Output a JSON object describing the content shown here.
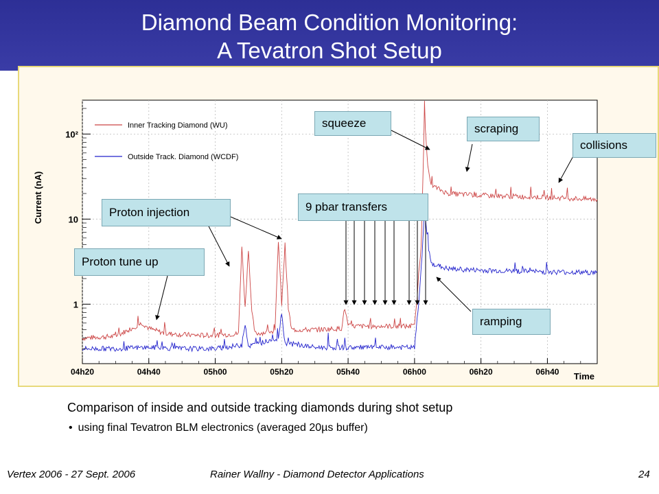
{
  "header": {
    "title_line1": "Diamond Beam Condition Monitoring:",
    "title_line2": "A Tevatron Shot Setup"
  },
  "chart_data": {
    "type": "line",
    "title": "",
    "xlabel": "Time",
    "ylabel": "Current (nA)",
    "yscale": "log",
    "x_ticks": [
      "04h20",
      "04h40",
      "05h00",
      "05h20",
      "05h40",
      "06h00",
      "06h20",
      "06h40"
    ],
    "y_ticks": [
      "1",
      "10",
      "10²"
    ],
    "xlim": [
      "04h20",
      "06h55"
    ],
    "ylim": [
      0.2,
      250
    ],
    "legend_position": "top-left",
    "series": [
      {
        "name": "Inner Tracking Diamond (WU)",
        "color": "#cc4444",
        "points": [
          [
            "04h20",
            0.4
          ],
          [
            "04h30",
            0.42
          ],
          [
            "04h38",
            0.6
          ],
          [
            "04h40",
            0.52
          ],
          [
            "04h45",
            0.45
          ],
          [
            "04h55",
            0.43
          ],
          [
            "05h00",
            0.43
          ],
          [
            "05h07",
            0.45
          ],
          [
            "05h08",
            4.8
          ],
          [
            "05h09",
            0.9
          ],
          [
            "05h10",
            4.5
          ],
          [
            "05h11",
            0.8
          ],
          [
            "05h12",
            0.45
          ],
          [
            "05h18",
            0.48
          ],
          [
            "05h19",
            5.5
          ],
          [
            "05h20",
            1.0
          ],
          [
            "05h21",
            5.0
          ],
          [
            "05h22",
            0.9
          ],
          [
            "05h23",
            0.5
          ],
          [
            "05h30",
            0.5
          ],
          [
            "05h38",
            0.52
          ],
          [
            "05h39",
            0.9
          ],
          [
            "05h40",
            0.55
          ],
          [
            "05h50",
            0.55
          ],
          [
            "06h00",
            0.55
          ],
          [
            "06h01",
            1.5
          ],
          [
            "06h02",
            5.0
          ],
          [
            "06h03",
            180
          ],
          [
            "06h04",
            40
          ],
          [
            "06h05",
            25
          ],
          [
            "06h10",
            20
          ],
          [
            "06h20",
            19
          ],
          [
            "06h30",
            18.5
          ],
          [
            "06h40",
            18
          ],
          [
            "06h55",
            17
          ]
        ]
      },
      {
        "name": "Outside Track. Diamond (WCDF)",
        "color": "#2222cc",
        "points": [
          [
            "04h20",
            0.3
          ],
          [
            "04h30",
            0.3
          ],
          [
            "04h40",
            0.31
          ],
          [
            "04h50",
            0.3
          ],
          [
            "05h00",
            0.3
          ],
          [
            "05h08",
            0.33
          ],
          [
            "05h09",
            0.6
          ],
          [
            "05h10",
            0.32
          ],
          [
            "05h19",
            0.4
          ],
          [
            "05h20",
            0.8
          ],
          [
            "05h21",
            0.35
          ],
          [
            "05h30",
            0.31
          ],
          [
            "05h40",
            0.31
          ],
          [
            "05h50",
            0.31
          ],
          [
            "06h00",
            0.31
          ],
          [
            "06h01",
            0.8
          ],
          [
            "06h02",
            2.5
          ],
          [
            "06h03",
            13
          ],
          [
            "06h04",
            5.0
          ],
          [
            "06h05",
            3.0
          ],
          [
            "06h10",
            2.6
          ],
          [
            "06h20",
            2.5
          ],
          [
            "06h30",
            2.45
          ],
          [
            "06h40",
            2.4
          ],
          [
            "06h55",
            2.35
          ]
        ]
      }
    ]
  },
  "annotations": {
    "squeeze": "squeeze",
    "scraping": "scraping",
    "collisions": "collisions",
    "pbar_transfers": "9 pbar transfers",
    "proton_injection": "Proton injection",
    "proton_tune_up": "Proton tune up",
    "ramping": "ramping"
  },
  "caption": "Comparison of inside and outside tracking diamonds during shot setup",
  "bullet": "using final Tevatron BLM electronics (averaged 20µs buffer)",
  "footer": {
    "left": "Vertex 2006 - 27 Sept. 2006",
    "center": "Rainer Wallny - Diamond Detector Applications",
    "page_number": "24"
  }
}
